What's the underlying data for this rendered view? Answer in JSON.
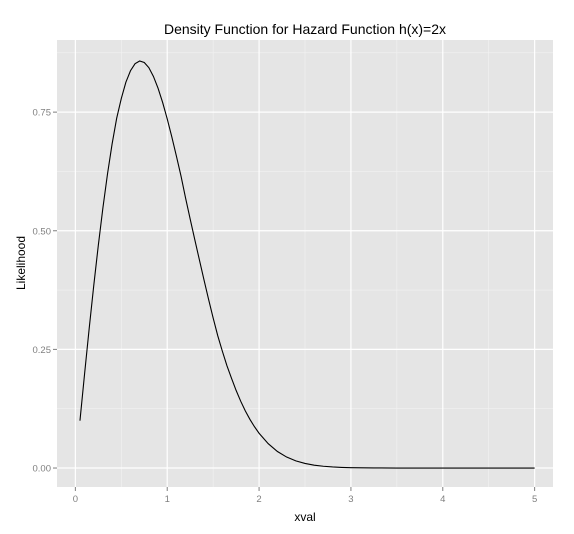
{
  "chart_data": {
    "type": "line",
    "title": "Density Function for Hazard Function h(x)=2x",
    "xlabel": "xval",
    "ylabel": "Likelihood",
    "xlim": [
      -0.2,
      5.2
    ],
    "ylim": [
      -0.04,
      0.902
    ],
    "x_ticks": [
      0,
      1,
      2,
      3,
      4,
      5
    ],
    "x_tick_labels": [
      "0",
      "1",
      "2",
      "3",
      "4",
      "5"
    ],
    "y_ticks": [
      0,
      0.25,
      0.5,
      0.75
    ],
    "y_tick_labels": [
      "0.00",
      "0.25",
      "0.50",
      "0.75"
    ],
    "grid": true,
    "series": [
      {
        "function": "2x·exp(-x²)",
        "x": [
          0.05,
          0.1,
          0.15,
          0.2,
          0.25,
          0.3,
          0.35,
          0.4,
          0.45,
          0.5,
          0.55,
          0.6,
          0.65,
          0.7,
          0.75,
          0.8,
          0.85,
          0.9,
          0.95,
          1.0,
          1.05,
          1.1,
          1.15,
          1.2,
          1.25,
          1.3,
          1.35,
          1.4,
          1.45,
          1.5,
          1.55,
          1.6,
          1.65,
          1.7,
          1.75,
          1.8,
          1.85,
          1.9,
          1.95,
          2.0,
          2.1,
          2.2,
          2.3,
          2.4,
          2.5,
          2.6,
          2.7,
          2.8,
          2.9,
          3.0,
          3.25,
          3.5,
          3.75,
          4.0,
          4.5,
          5.0
        ],
        "y": [
          0.0998,
          0.198,
          0.2933,
          0.3843,
          0.4697,
          0.5486,
          0.62,
          0.6831,
          0.7374,
          0.7788,
          0.813,
          0.8372,
          0.8521,
          0.8578,
          0.8546,
          0.8437,
          0.8252,
          0.8005,
          0.7704,
          0.7358,
          0.6978,
          0.6574,
          0.6154,
          0.5688,
          0.5245,
          0.4814,
          0.4388,
          0.3967,
          0.3556,
          0.3162,
          0.2789,
          0.2463,
          0.2157,
          0.1891,
          0.1636,
          0.1408,
          0.1205,
          0.1027,
          0.087,
          0.0733,
          0.0513,
          0.0348,
          0.0231,
          0.0151,
          0.0096,
          0.006,
          0.0037,
          0.0022,
          0.0013,
          0.0007,
          0.0002,
          0.0,
          0.0,
          0.0,
          0.0,
          0.0
        ]
      }
    ]
  }
}
